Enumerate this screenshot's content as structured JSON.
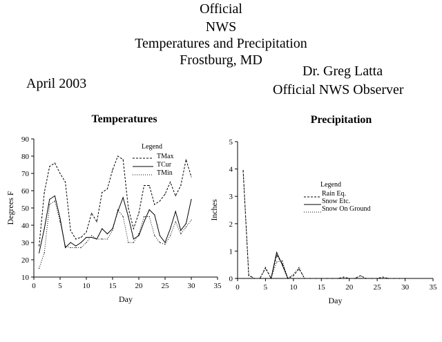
{
  "header": {
    "line1": "Official",
    "line2": "NWS",
    "line3": "Temperatures and Precipitation",
    "line4": "Frostburg, MD",
    "month": "April 2003",
    "observer_name": "Dr. Greg Latta",
    "observer_title": "Official NWS Observer"
  },
  "chart_data": [
    {
      "type": "line",
      "title": "Temperatures",
      "xlabel": "Day",
      "ylabel": "Degrees F",
      "xlim": [
        0,
        35
      ],
      "ylim": [
        10,
        90
      ],
      "xticks": [
        0,
        5,
        10,
        15,
        20,
        25,
        30,
        35
      ],
      "yticks": [
        10,
        20,
        30,
        40,
        50,
        60,
        70,
        80,
        90
      ],
      "legend_title": "Legend",
      "legend_position": "top-center",
      "series": [
        {
          "name": "TMax",
          "style": "dashed",
          "color": "#000000",
          "x": [
            1,
            2,
            3,
            4,
            5,
            6,
            7,
            8,
            9,
            10,
            11,
            12,
            13,
            14,
            15,
            16,
            17,
            18,
            19,
            20,
            21,
            22,
            23,
            24,
            25,
            26,
            27,
            28,
            29,
            30
          ],
          "values": [
            28,
            59,
            74,
            76,
            70,
            65,
            37,
            32,
            33,
            36,
            47,
            42,
            59,
            61,
            72,
            80,
            78,
            50,
            38,
            47,
            63,
            63,
            52,
            54,
            58,
            65,
            57,
            63,
            78,
            68
          ]
        },
        {
          "name": "TCur",
          "style": "solid",
          "color": "#000000",
          "x": [
            1,
            2,
            3,
            4,
            5,
            6,
            7,
            8,
            9,
            10,
            11,
            12,
            13,
            14,
            15,
            16,
            17,
            18,
            19,
            20,
            21,
            22,
            23,
            24,
            25,
            26,
            27,
            28,
            29,
            30
          ],
          "values": [
            24,
            38,
            55,
            57,
            44,
            27,
            30,
            28,
            30,
            33,
            33,
            32,
            38,
            35,
            38,
            48,
            56,
            45,
            32,
            34,
            42,
            49,
            46,
            34,
            30,
            38,
            48,
            37,
            41,
            55
          ]
        },
        {
          "name": "TMin",
          "style": "dotted",
          "color": "#000000",
          "x": [
            1,
            2,
            3,
            4,
            5,
            6,
            7,
            8,
            9,
            10,
            11,
            12,
            13,
            14,
            15,
            16,
            17,
            18,
            19,
            20,
            21,
            22,
            23,
            24,
            25,
            26,
            27,
            28,
            29,
            30
          ],
          "values": [
            15,
            24,
            52,
            54,
            42,
            28,
            27,
            27,
            27,
            30,
            34,
            32,
            32,
            32,
            37,
            49,
            45,
            30,
            30,
            35,
            45,
            45,
            34,
            30,
            29,
            34,
            42,
            35,
            39,
            43
          ]
        }
      ]
    },
    {
      "type": "line",
      "title": "Precipitation",
      "xlabel": "Day",
      "ylabel": "Inches",
      "xlim": [
        0,
        35
      ],
      "ylim": [
        0,
        5
      ],
      "xticks": [
        0,
        5,
        10,
        15,
        20,
        25,
        30,
        35
      ],
      "yticks": [
        0,
        1,
        2,
        3,
        4,
        5
      ],
      "legend_title": "Legend",
      "legend_position": "center",
      "series": [
        {
          "name": "Rain Eq.",
          "style": "dashed",
          "color": "#000000",
          "x": [
            1,
            2,
            3,
            4,
            5,
            6,
            7,
            8,
            9,
            10,
            11,
            12,
            13,
            14,
            15,
            16,
            17,
            18,
            19,
            20,
            21,
            22,
            23,
            24,
            25,
            26,
            27,
            28,
            29,
            30
          ],
          "values": [
            3.95,
            0.12,
            0,
            0,
            0.4,
            0,
            0.85,
            0.55,
            0,
            0.1,
            0.35,
            0,
            0,
            0,
            0,
            0,
            0,
            0,
            0.05,
            0,
            0,
            0.1,
            0,
            0,
            0,
            0.05,
            0,
            0,
            0,
            0
          ]
        },
        {
          "name": "Snow Etc.",
          "style": "solid",
          "color": "#000000",
          "x": [
            1,
            2,
            3,
            4,
            5,
            6,
            7,
            8,
            9,
            10,
            11,
            12,
            13,
            14,
            15,
            16,
            17,
            18,
            19,
            20,
            21,
            22,
            23,
            24,
            25,
            26,
            27,
            28,
            29,
            30
          ],
          "values": [
            0,
            0,
            0,
            0,
            0,
            0,
            0.95,
            0.5,
            0,
            0,
            0,
            0,
            0,
            0,
            0,
            0,
            0,
            0,
            0,
            0,
            0,
            0,
            0,
            0,
            0,
            0,
            0,
            0,
            0,
            0
          ]
        },
        {
          "name": "Snow On Ground",
          "style": "dotted",
          "color": "#000000",
          "x": [
            1,
            2,
            3,
            4,
            5,
            6,
            7,
            8,
            9,
            10,
            11,
            12,
            13,
            14,
            15,
            16,
            17,
            18,
            19,
            20,
            21,
            22,
            23,
            24,
            25,
            26,
            27,
            28,
            29,
            30
          ],
          "values": [
            3.9,
            0.1,
            0,
            0,
            0.35,
            0,
            0.6,
            0.65,
            0,
            0.15,
            0.4,
            0,
            0,
            0,
            0,
            0,
            0,
            0,
            0,
            0,
            0,
            0.1,
            0,
            0,
            0,
            0,
            0,
            0,
            0,
            0
          ]
        }
      ]
    }
  ]
}
